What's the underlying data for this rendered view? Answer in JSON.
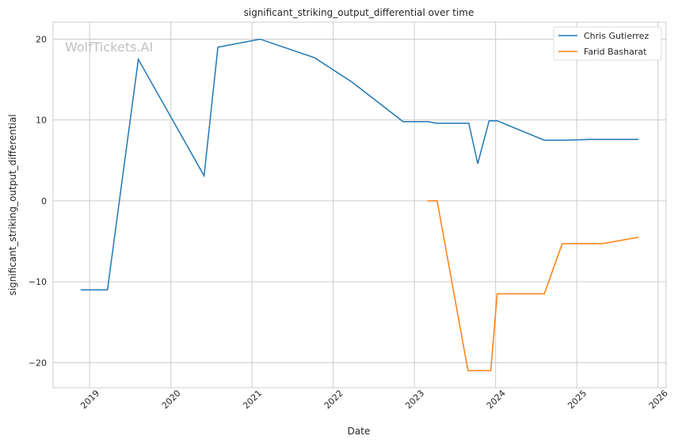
{
  "chart_data": {
    "type": "line",
    "title": "significant_striking_output_differential over time",
    "xlabel": "Date",
    "ylabel": "significant_striking_output_differential",
    "xlim": [
      2018.55,
      2026.1
    ],
    "ylim": [
      -23.1,
      22.1
    ],
    "xticks": [
      2019,
      2020,
      2021,
      2022,
      2023,
      2024,
      2025,
      2026
    ],
    "xtick_labels": [
      "2019",
      "2020",
      "2021",
      "2022",
      "2023",
      "2024",
      "2025",
      "2026"
    ],
    "yticks": [
      -20,
      -10,
      0,
      10,
      20
    ],
    "ytick_labels": [
      "−20",
      "−10",
      "0",
      "10",
      "20"
    ],
    "grid": true,
    "legend_position": "top-right",
    "watermark": "WolfTickets.AI",
    "series": [
      {
        "name": "Chris Gutierrez",
        "color": "#1f77b4",
        "x": [
          2018.89,
          2019.22,
          2019.6,
          2020.41,
          2020.58,
          2021.1,
          2021.77,
          2022.23,
          2022.86,
          2023.17,
          2023.27,
          2023.67,
          2023.78,
          2023.92,
          2024.02,
          2024.6,
          2024.83,
          2025.17,
          2025.76
        ],
        "y": [
          -11,
          -11,
          17.5,
          3.1,
          19.0,
          20.0,
          17.7,
          14.7,
          9.8,
          9.8,
          9.6,
          9.6,
          4.6,
          9.9,
          9.9,
          7.5,
          7.5,
          7.6,
          7.6
        ]
      },
      {
        "name": "Farid Basharat",
        "color": "#ff7f0e",
        "x": [
          2023.16,
          2023.28,
          2023.66,
          2023.94,
          2024.02,
          2024.6,
          2024.82,
          2025.31,
          2025.76
        ],
        "y": [
          0,
          0,
          -21,
          -21,
          -11.5,
          -11.5,
          -5.3,
          -5.3,
          -4.5
        ]
      }
    ]
  }
}
